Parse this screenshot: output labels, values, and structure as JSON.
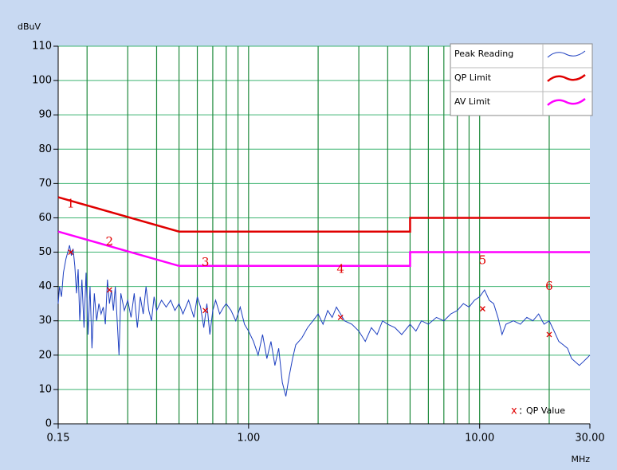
{
  "chart_data": {
    "type": "line",
    "y_label": "dBuV",
    "x_label": "MHz",
    "log_x": true,
    "xlim": [
      0.15,
      30
    ],
    "ylim": [
      0,
      110
    ],
    "xticks": [
      0.15,
      {
        "value": 1,
        "label": "1.00"
      },
      {
        "value": 10,
        "label": "10.00"
      },
      {
        "value": 30,
        "label": "30.00"
      }
    ],
    "xgrid": [
      0.2,
      0.3,
      0.4,
      0.5,
      0.6,
      0.7,
      0.8,
      0.9,
      1,
      2,
      3,
      4,
      5,
      6,
      7,
      8,
      9,
      10,
      20
    ],
    "yticks": [
      0,
      10,
      20,
      30,
      40,
      50,
      60,
      70,
      80,
      90,
      100,
      110
    ],
    "grid": true,
    "legend": "top-right",
    "series": [
      {
        "name": "Peak Reading",
        "color": "#1d3fc0",
        "x": [
          0.15,
          0.152,
          0.155,
          0.158,
          0.162,
          0.165,
          0.168,
          0.171,
          0.174,
          0.177,
          0.18,
          0.183,
          0.186,
          0.19,
          0.194,
          0.198,
          0.202,
          0.206,
          0.21,
          0.215,
          0.22,
          0.225,
          0.23,
          0.235,
          0.24,
          0.245,
          0.25,
          0.255,
          0.26,
          0.265,
          0.27,
          0.275,
          0.28,
          0.29,
          0.3,
          0.31,
          0.32,
          0.33,
          0.34,
          0.35,
          0.36,
          0.37,
          0.38,
          0.39,
          0.4,
          0.42,
          0.44,
          0.46,
          0.48,
          0.5,
          0.52,
          0.55,
          0.58,
          0.6,
          0.62,
          0.64,
          0.66,
          0.68,
          0.7,
          0.72,
          0.75,
          0.78,
          0.8,
          0.84,
          0.88,
          0.92,
          0.96,
          1.0,
          1.05,
          1.1,
          1.15,
          1.2,
          1.25,
          1.3,
          1.35,
          1.4,
          1.45,
          1.5,
          1.55,
          1.6,
          1.7,
          1.8,
          1.9,
          2.0,
          2.1,
          2.2,
          2.3,
          2.4,
          2.5,
          2.6,
          2.8,
          3.0,
          3.2,
          3.4,
          3.6,
          3.8,
          4.0,
          4.3,
          4.6,
          5.0,
          5.3,
          5.6,
          6.0,
          6.5,
          7.0,
          7.5,
          8.0,
          8.5,
          9.0,
          9.5,
          10.0,
          10.5,
          11,
          11.5,
          12,
          12.5,
          13,
          14,
          15,
          16,
          17,
          18,
          19,
          20,
          21,
          22,
          23,
          24,
          25,
          26,
          27,
          28,
          29,
          30
        ],
        "values": [
          35,
          40,
          37,
          44,
          48,
          50,
          52,
          49,
          51,
          46,
          38,
          45,
          30,
          42,
          28,
          44,
          26,
          40,
          22,
          38,
          30,
          35,
          32,
          34,
          29,
          42,
          35,
          39,
          33,
          40,
          30,
          20,
          38,
          33,
          36,
          31,
          38,
          28,
          37,
          32,
          40,
          33,
          30,
          37,
          33,
          36,
          34,
          36,
          33,
          35,
          32,
          36,
          31,
          37,
          34,
          28,
          35,
          26,
          33,
          36,
          32,
          34,
          35,
          33,
          30,
          34,
          29,
          27,
          24,
          20,
          26,
          19,
          24,
          17,
          22,
          12,
          8,
          14,
          19,
          23,
          25,
          28,
          30,
          32,
          29,
          33,
          31,
          34,
          32,
          30,
          29,
          27,
          24,
          28,
          26,
          30,
          29,
          28,
          26,
          29,
          27,
          30,
          29,
          31,
          30,
          32,
          33,
          35,
          34,
          36,
          37,
          39,
          36,
          35,
          31,
          26,
          29,
          30,
          29,
          31,
          30,
          32,
          29,
          30,
          27,
          24,
          23,
          22,
          19,
          18,
          17,
          18,
          19,
          20
        ]
      },
      {
        "name": "QP Limit",
        "color": "#e00000",
        "x": [
          0.15,
          0.5,
          5,
          5,
          30
        ],
        "values": [
          66,
          56,
          56,
          60,
          60
        ]
      },
      {
        "name": "AV Limit",
        "color": "#ff00ff",
        "x": [
          0.15,
          0.5,
          5,
          5,
          30
        ],
        "values": [
          56,
          46,
          46,
          50,
          50
        ]
      }
    ],
    "markers": {
      "name": "QP Value",
      "color": "#e00000",
      "labels": [
        "1",
        "2",
        "3",
        "4",
        "5",
        "6"
      ],
      "x": [
        0.17,
        0.25,
        0.65,
        2.5,
        10.3,
        20
      ],
      "values": [
        50,
        39,
        33,
        31,
        33.5,
        26
      ]
    }
  }
}
